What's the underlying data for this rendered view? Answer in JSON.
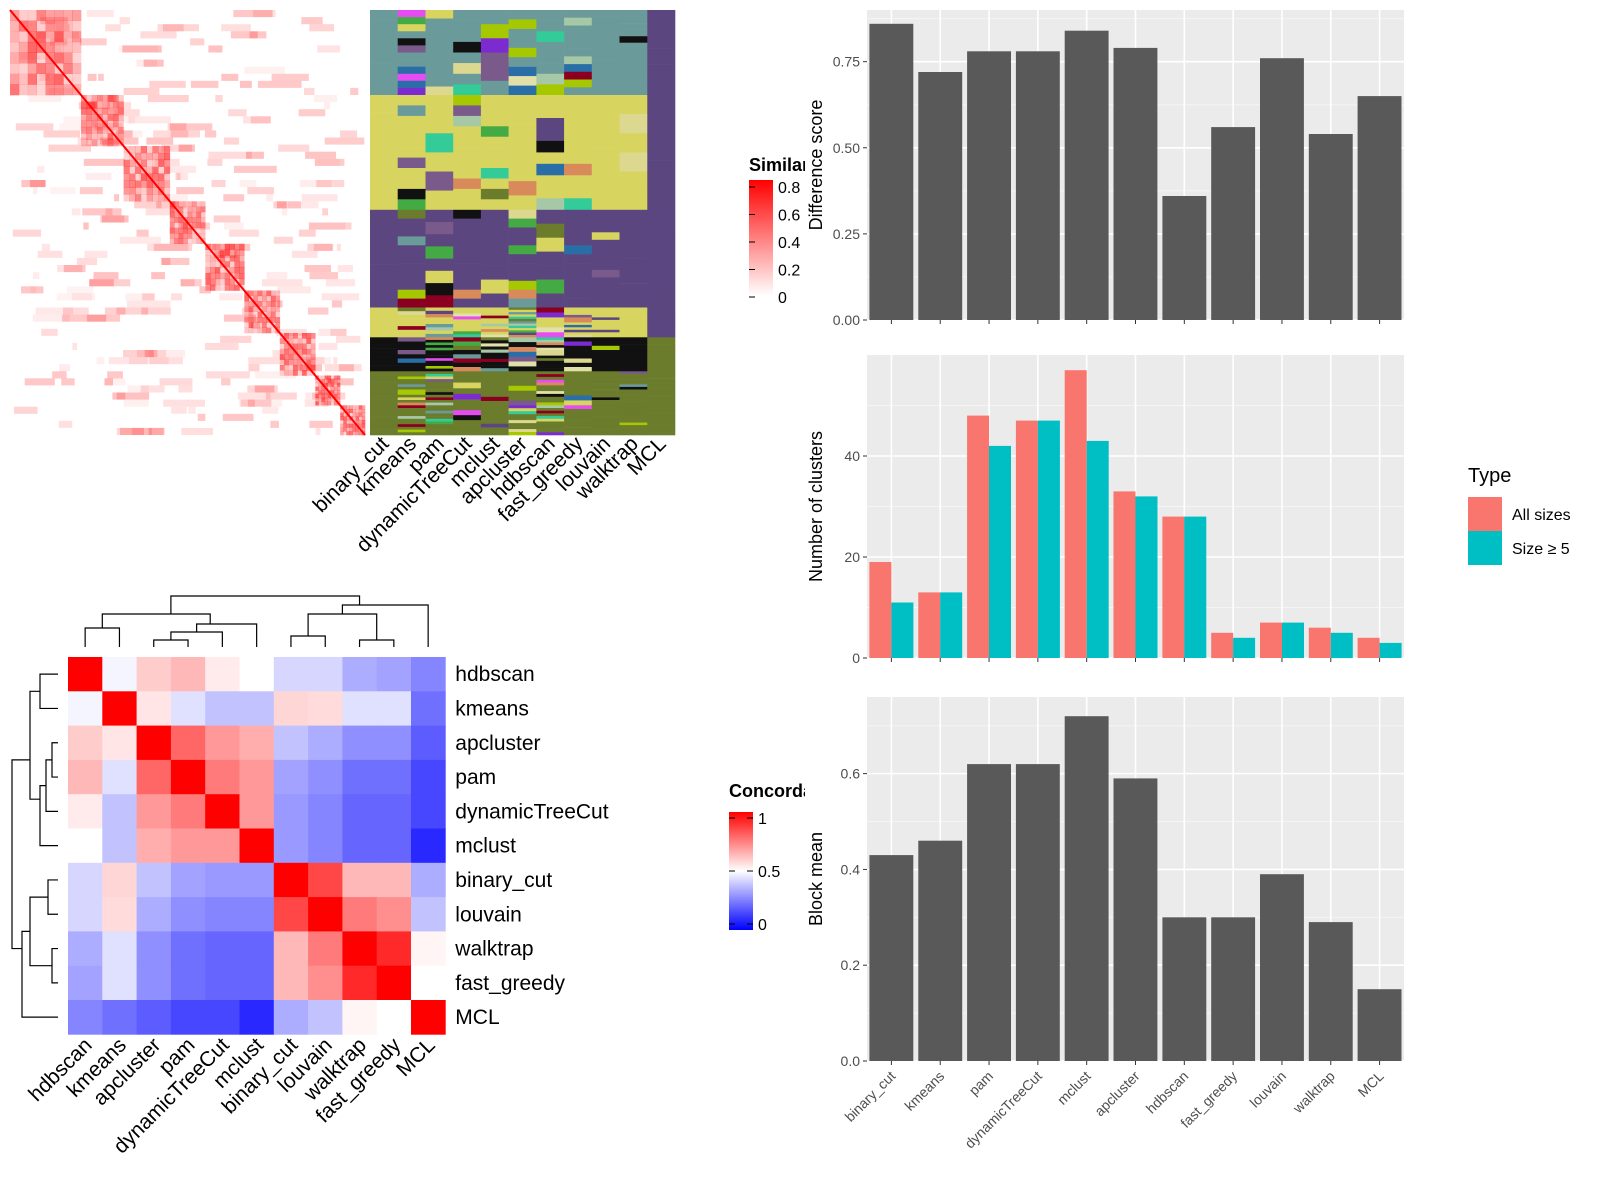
{
  "chart_data": [
    {
      "type": "heatmap",
      "panel": "similarity-matrix-with-cluster-annotations",
      "legend_title": "Similarity",
      "legend_ticks": [
        "0.8",
        "0.6",
        "0.4",
        "0.2",
        "0"
      ],
      "column_labels": [
        "binary_cut",
        "kmeans",
        "pam",
        "dynamicTreeCut",
        "mclust",
        "apcluster",
        "hdbscan",
        "fast_greedy",
        "louvain",
        "walktrap",
        "MCL"
      ],
      "colors": {
        "high": "#ff0000",
        "low": "#ffffff",
        "annotation_palette": [
          "#6a9a9a",
          "#d8d460",
          "#5b4680",
          "#6b7c2c",
          "#111111",
          "#dcd890",
          "#7a5a8a",
          "#a6c800"
        ]
      }
    },
    {
      "type": "heatmap",
      "panel": "concordance-matrix",
      "legend_title": "Concordance",
      "legend_ticks": [
        "1",
        "0.5",
        "0"
      ],
      "row_labels": [
        "hdbscan",
        "kmeans",
        "apcluster",
        "pam",
        "dynamicTreeCut",
        "mclust",
        "binary_cut",
        "louvain",
        "walktrap",
        "fast_greedy",
        "MCL"
      ],
      "column_labels": [
        "hdbscan",
        "kmeans",
        "apcluster",
        "pam",
        "dynamicTreeCut",
        "mclust",
        "binary_cut",
        "louvain",
        "walktrap",
        "fast_greedy",
        "MCL"
      ],
      "values": [
        [
          1.0,
          0.48,
          0.6,
          0.64,
          0.54,
          0.5,
          0.42,
          0.42,
          0.34,
          0.32,
          0.26
        ],
        [
          0.48,
          1.0,
          0.55,
          0.44,
          0.38,
          0.38,
          0.58,
          0.57,
          0.44,
          0.44,
          0.22
        ],
        [
          0.6,
          0.55,
          1.0,
          0.8,
          0.7,
          0.66,
          0.38,
          0.34,
          0.28,
          0.28,
          0.18
        ],
        [
          0.64,
          0.44,
          0.8,
          1.0,
          0.76,
          0.7,
          0.32,
          0.28,
          0.22,
          0.22,
          0.14
        ],
        [
          0.54,
          0.38,
          0.7,
          0.76,
          1.0,
          0.7,
          0.3,
          0.26,
          0.2,
          0.2,
          0.14
        ],
        [
          0.5,
          0.38,
          0.66,
          0.7,
          0.7,
          1.0,
          0.3,
          0.26,
          0.2,
          0.2,
          0.08
        ],
        [
          0.42,
          0.58,
          0.38,
          0.32,
          0.3,
          0.3,
          1.0,
          0.86,
          0.64,
          0.64,
          0.34
        ],
        [
          0.42,
          0.57,
          0.34,
          0.28,
          0.26,
          0.26,
          0.86,
          1.0,
          0.76,
          0.72,
          0.38
        ],
        [
          0.34,
          0.44,
          0.28,
          0.22,
          0.2,
          0.2,
          0.64,
          0.76,
          1.0,
          0.92,
          0.52
        ],
        [
          0.32,
          0.44,
          0.28,
          0.22,
          0.2,
          0.2,
          0.64,
          0.72,
          0.92,
          1.0,
          0.5
        ],
        [
          0.26,
          0.22,
          0.18,
          0.14,
          0.14,
          0.08,
          0.34,
          0.38,
          0.52,
          0.5,
          1.0
        ]
      ],
      "colors": {
        "high": "#ff0000",
        "mid": "#ffffff",
        "low": "#0000ff"
      }
    },
    {
      "type": "bar",
      "panel": "difference-score",
      "categories": [
        "binary_cut",
        "kmeans",
        "pam",
        "dynamicTreeCut",
        "mclust",
        "apcluster",
        "hdbscan",
        "fast_greedy",
        "louvain",
        "walktrap",
        "MCL"
      ],
      "values": [
        0.86,
        0.72,
        0.78,
        0.78,
        0.84,
        0.79,
        0.36,
        0.56,
        0.76,
        0.54,
        0.65
      ],
      "ylabel": "Difference score",
      "ylim": [
        0,
        0.9
      ],
      "yticks": [
        0.0,
        0.25,
        0.5,
        0.75
      ],
      "ytick_labels": [
        "0.00",
        "0.25",
        "0.50",
        "0.75"
      ],
      "bar_color": "#595959"
    },
    {
      "type": "bar",
      "panel": "number-of-clusters",
      "categories": [
        "binary_cut",
        "kmeans",
        "pam",
        "dynamicTreeCut",
        "mclust",
        "apcluster",
        "hdbscan",
        "fast_greedy",
        "louvain",
        "walktrap",
        "MCL"
      ],
      "series": [
        {
          "name": "All sizes",
          "values": [
            19,
            13,
            48,
            47,
            57,
            33,
            28,
            5,
            7,
            6,
            4
          ],
          "color": "#f8766d"
        },
        {
          "name": "Size ≥ 5",
          "values": [
            11,
            13,
            42,
            47,
            43,
            32,
            28,
            4,
            7,
            5,
            3
          ],
          "color": "#00bfc4"
        }
      ],
      "ylabel": "Number of clusters",
      "ylim": [
        0,
        60
      ],
      "yticks": [
        0,
        20,
        40
      ],
      "legend_title": "Type",
      "legend_position": "right"
    },
    {
      "type": "bar",
      "panel": "block-mean",
      "categories": [
        "binary_cut",
        "kmeans",
        "pam",
        "dynamicTreeCut",
        "mclust",
        "apcluster",
        "hdbscan",
        "fast_greedy",
        "louvain",
        "walktrap",
        "MCL"
      ],
      "values": [
        0.43,
        0.46,
        0.62,
        0.62,
        0.72,
        0.59,
        0.3,
        0.3,
        0.39,
        0.29,
        0.15
      ],
      "ylabel": "Block mean",
      "ylim": [
        0,
        0.76
      ],
      "yticks": [
        0.0,
        0.2,
        0.4,
        0.6
      ],
      "ytick_labels": [
        "0.0",
        "0.2",
        "0.4",
        "0.6"
      ],
      "bar_color": "#595959"
    }
  ]
}
